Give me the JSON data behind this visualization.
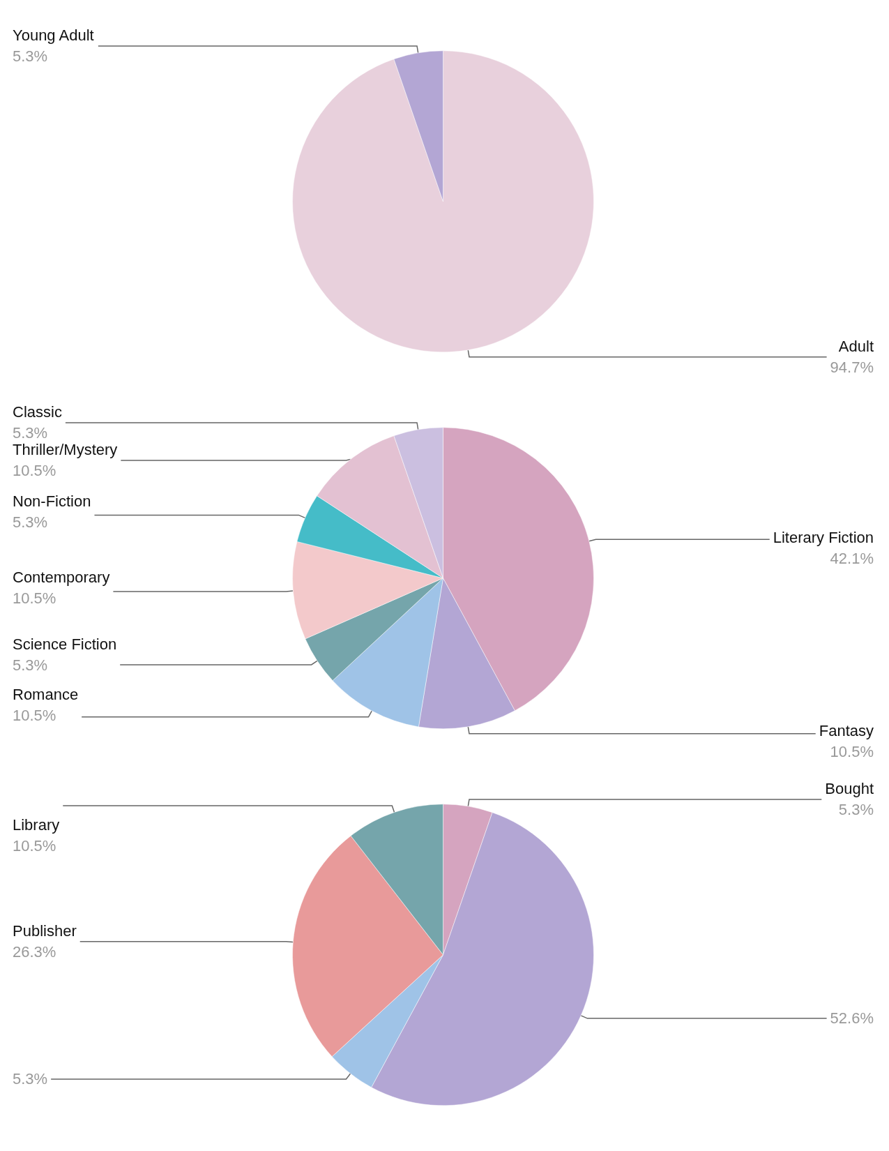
{
  "chart_data": [
    {
      "type": "pie",
      "categories": [
        "Adult",
        "Young Adult"
      ],
      "values": [
        94.7,
        5.3
      ],
      "colors": [
        "#e8d0dc",
        "#b3a6d4"
      ],
      "value_labels": [
        "94.7%",
        "5.3%"
      ]
    },
    {
      "type": "pie",
      "categories": [
        "Literary Fiction",
        "Fantasy",
        "Romance",
        "Science Fiction",
        "Contemporary",
        "Non-Fiction",
        "Thriller/Mystery",
        "Classic"
      ],
      "values": [
        42.1,
        10.5,
        10.5,
        5.3,
        10.5,
        5.3,
        10.5,
        5.3
      ],
      "colors": [
        "#d5a4bf",
        "#b3a6d4",
        "#9fc3e7",
        "#75a5ab",
        "#f3c9cb",
        "#45bcc8",
        "#e3c1d2",
        "#cbbfe0"
      ],
      "value_labels": [
        "42.1%",
        "10.5%",
        "10.5%",
        "5.3%",
        "10.5%",
        "5.3%",
        "10.5%",
        "5.3%"
      ]
    },
    {
      "type": "pie",
      "categories": [
        "Bought",
        null,
        null,
        "Publisher",
        "Library"
      ],
      "values": [
        5.3,
        52.6,
        5.3,
        26.3,
        10.5
      ],
      "colors": [
        "#d5a4bf",
        "#b3a6d4",
        "#9fc3e7",
        "#e89a9a",
        "#75a5ab"
      ],
      "value_labels": [
        "5.3%",
        "52.6%",
        "5.3%",
        "26.3%",
        "10.5%"
      ]
    }
  ]
}
